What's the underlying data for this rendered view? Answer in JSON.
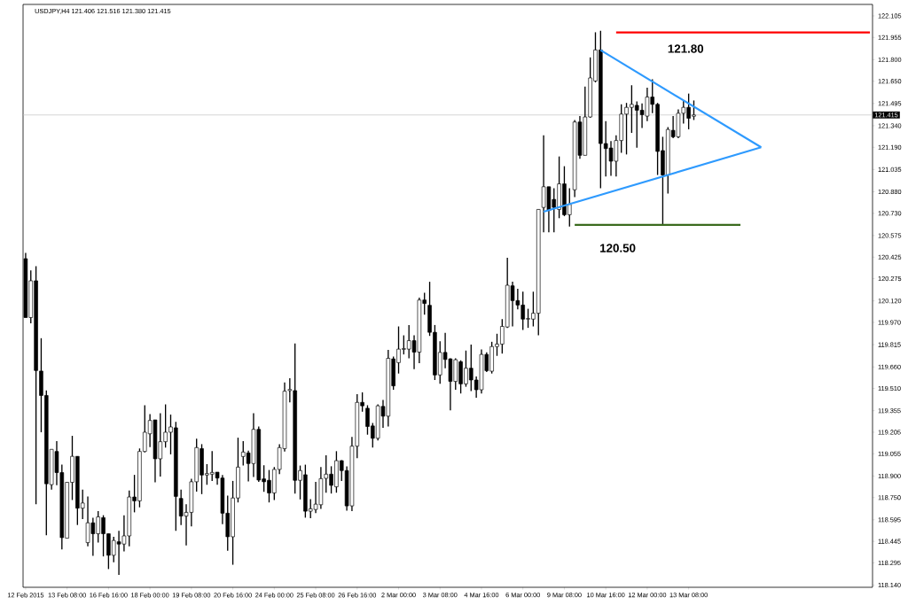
{
  "chart_data": {
    "type": "candlestick",
    "title": "USDJPY,H4 121.406 121.516 121.380 121.415",
    "categories": [
      "12 Feb 2015",
      null,
      null,
      null,
      null,
      null,
      null,
      null,
      "13 Feb 08:00",
      null,
      null,
      null,
      null,
      null,
      null,
      null,
      "16 Feb 16:00",
      null,
      null,
      null,
      null,
      null,
      null,
      null,
      "18 Feb 00:00",
      null,
      null,
      null,
      null,
      null,
      null,
      null,
      "19 Feb 08:00",
      null,
      null,
      null,
      null,
      null,
      null,
      null,
      "20 Feb 16:00",
      null,
      null,
      null,
      null,
      null,
      null,
      null,
      "24 Feb 00:00",
      null,
      null,
      null,
      null,
      null,
      null,
      null,
      "25 Feb 08:00",
      null,
      null,
      null,
      null,
      null,
      null,
      null,
      "26 Feb 16:00",
      null,
      null,
      null,
      null,
      null,
      null,
      null,
      "2 Mar 00:00",
      null,
      null,
      null,
      null,
      null,
      null,
      null,
      "3 Mar 08:00",
      null,
      null,
      null,
      null,
      null,
      null,
      null,
      "4 Mar 16:00",
      null,
      null,
      null,
      null,
      null,
      null,
      null,
      "6 Mar 00:00",
      null,
      null,
      null,
      null,
      null,
      null,
      null,
      "9 Mar 08:00",
      null,
      null,
      null,
      null,
      null,
      null,
      null,
      "10 Mar 16:00",
      null,
      null,
      null,
      null,
      null,
      null,
      null,
      "12 Mar 00:00",
      null,
      null,
      null,
      null,
      null,
      null,
      null,
      "13 Mar 08:00",
      null,
      null,
      null,
      null,
      null,
      null,
      null,
      null,
      null,
      null,
      null,
      null,
      null,
      null,
      null,
      null,
      null,
      null,
      null,
      null,
      null,
      null,
      null,
      null,
      null,
      null,
      null,
      null,
      null,
      null,
      null,
      null,
      null,
      null,
      null
    ],
    "ohlc": [
      [
        120.414,
        120.455,
        120.004,
        120.004
      ],
      [
        120.004,
        120.332,
        119.963,
        120.26
      ],
      [
        120.26,
        120.362,
        118.703,
        119.635
      ],
      [
        119.631,
        119.86,
        119.205,
        119.461
      ],
      [
        119.461,
        119.496,
        118.488,
        118.846
      ],
      [
        118.84,
        119.086,
        118.805,
        119.086
      ],
      [
        119.071,
        119.143,
        118.836,
        118.924
      ],
      [
        118.924,
        118.979,
        118.389,
        118.471
      ],
      [
        118.467,
        118.856,
        118.467,
        118.856
      ],
      [
        118.856,
        119.18,
        118.733,
        119.037
      ],
      [
        119.037,
        119.037,
        118.559,
        118.676
      ],
      [
        118.676,
        118.805,
        118.6,
        118.712
      ],
      [
        118.436,
        118.758,
        118.41,
        118.574
      ],
      [
        118.574,
        118.61,
        118.344,
        118.498
      ],
      [
        118.498,
        118.656,
        118.436,
        118.615
      ],
      [
        118.61,
        118.627,
        118.34,
        118.498
      ],
      [
        118.498,
        118.498,
        118.252,
        118.348
      ],
      [
        118.348,
        118.477,
        118.299,
        118.451
      ],
      [
        118.442,
        118.518,
        118.211,
        118.426
      ],
      [
        118.426,
        118.627,
        118.375,
        118.483
      ],
      [
        118.483,
        118.799,
        118.41,
        118.754
      ],
      [
        118.754,
        118.908,
        118.647,
        118.727
      ],
      [
        118.727,
        119.092,
        118.682,
        119.071
      ],
      [
        119.071,
        119.393,
        119.065,
        119.205
      ],
      [
        119.194,
        119.332,
        119.102,
        119.287
      ],
      [
        119.291,
        119.291,
        118.856,
        119.02
      ],
      [
        119.02,
        119.338,
        118.897,
        119.139
      ],
      [
        119.139,
        119.399,
        119.098,
        119.205
      ],
      [
        119.205,
        119.328,
        119.051,
        119.242
      ],
      [
        119.236,
        119.277,
        118.518,
        118.758
      ],
      [
        118.744,
        118.805,
        118.559,
        118.621
      ],
      [
        118.621,
        118.703,
        118.416,
        118.647
      ],
      [
        118.647,
        118.881,
        118.549,
        118.86
      ],
      [
        118.86,
        119.16,
        118.791,
        119.098
      ],
      [
        119.091,
        119.122,
        118.774,
        118.907
      ],
      [
        118.907,
        118.983,
        118.839,
        118.917
      ],
      [
        118.913,
        119.073,
        118.866,
        118.925
      ],
      [
        118.927,
        118.927,
        118.839,
        118.886
      ],
      [
        118.886,
        118.907,
        118.565,
        118.641
      ],
      [
        118.641,
        118.764,
        118.38,
        118.477
      ],
      [
        118.477,
        118.866,
        118.282,
        118.747
      ],
      [
        118.747,
        119.167,
        118.716,
        118.962
      ],
      [
        119.036,
        119.143,
        118.973,
        119.067
      ],
      [
        119.061,
        119.077,
        118.862,
        118.987
      ],
      [
        118.987,
        119.337,
        118.893,
        119.225
      ],
      [
        119.225,
        119.245,
        118.86,
        118.872
      ],
      [
        118.88,
        118.975,
        118.79,
        118.86
      ],
      [
        118.87,
        118.942,
        118.716,
        118.782
      ],
      [
        118.782,
        118.962,
        118.733,
        118.946
      ],
      [
        118.946,
        119.122,
        118.913,
        119.098
      ],
      [
        119.091,
        119.552,
        119.071,
        119.491
      ],
      [
        119.495,
        119.581,
        119.413,
        119.503
      ],
      [
        119.495,
        119.823,
        118.778,
        118.87
      ],
      [
        118.87,
        118.973,
        118.737,
        118.938
      ],
      [
        118.909,
        118.979,
        118.61,
        118.655
      ],
      [
        118.655,
        118.739,
        118.606,
        118.672
      ],
      [
        118.667,
        118.86,
        118.641,
        118.704
      ],
      [
        118.7,
        118.962,
        118.671,
        118.882
      ],
      [
        118.884,
        119.044,
        118.784,
        118.913
      ],
      [
        118.913,
        118.968,
        118.778,
        118.835
      ],
      [
        118.825,
        119.073,
        118.784,
        119.007
      ],
      [
        119.007,
        119.011,
        118.866,
        118.938
      ],
      [
        118.938,
        118.968,
        118.659,
        118.692
      ],
      [
        118.692,
        119.173,
        118.655,
        119.108
      ],
      [
        119.108,
        119.47,
        119.024,
        119.413
      ],
      [
        119.413,
        119.483,
        119.348,
        119.389
      ],
      [
        119.372,
        119.393,
        119.188,
        119.245
      ],
      [
        119.249,
        119.27,
        119.098,
        119.163
      ],
      [
        119.163,
        119.399,
        119.147,
        119.389
      ],
      [
        119.385,
        119.43,
        119.235,
        119.317
      ],
      [
        119.317,
        119.778,
        119.245,
        119.72
      ],
      [
        119.716,
        119.733,
        119.501,
        119.528
      ],
      [
        119.69,
        119.942,
        119.614,
        119.784
      ],
      [
        119.782,
        119.88,
        119.747,
        119.788
      ],
      [
        119.784,
        119.952,
        119.72,
        119.843
      ],
      [
        119.843,
        119.88,
        119.645,
        119.763
      ],
      [
        119.763,
        120.143,
        119.686,
        120.126
      ],
      [
        120.126,
        120.177,
        120.024,
        120.102
      ],
      [
        120.089,
        120.253,
        119.876,
        119.901
      ],
      [
        119.901,
        119.952,
        119.569,
        119.604
      ],
      [
        119.604,
        119.839,
        119.542,
        119.761
      ],
      [
        119.761,
        119.897,
        119.651,
        119.712
      ],
      [
        119.716,
        119.72,
        119.358,
        119.559
      ],
      [
        119.559,
        119.72,
        119.501,
        119.71
      ],
      [
        119.696,
        119.706,
        119.475,
        119.542
      ],
      [
        119.542,
        119.774,
        119.522,
        119.651
      ],
      [
        119.651,
        119.815,
        119.491,
        119.569
      ],
      [
        119.569,
        119.593,
        119.446,
        119.501
      ],
      [
        119.501,
        119.782,
        119.475,
        119.747
      ],
      [
        119.747,
        119.761,
        119.624,
        119.634
      ],
      [
        119.63,
        119.835,
        119.614,
        119.802
      ],
      [
        119.802,
        119.891,
        119.737,
        119.819
      ],
      [
        119.819,
        119.993,
        119.753,
        119.942
      ],
      [
        119.938,
        120.42,
        119.932,
        120.229
      ],
      [
        120.225,
        120.253,
        119.942,
        120.122
      ],
      [
        120.122,
        120.204,
        120.061,
        120.091
      ],
      [
        120.091,
        120.184,
        119.917,
        119.993
      ],
      [
        119.993,
        120.065,
        119.932,
        119.997
      ],
      [
        119.993,
        120.184,
        119.942,
        120.034
      ],
      [
        120.034,
        120.757,
        119.88,
        120.757
      ],
      [
        120.771,
        121.273,
        120.597,
        120.915
      ],
      [
        120.915,
        120.915,
        120.597,
        120.751
      ],
      [
        120.827,
        120.905,
        120.597,
        120.771
      ],
      [
        120.757,
        121.126,
        120.696,
        120.935
      ],
      [
        120.935,
        121.058,
        120.71,
        120.72
      ],
      [
        120.72,
        120.905,
        120.638,
        120.792
      ],
      [
        120.894,
        121.38,
        120.843,
        121.366
      ],
      [
        121.366,
        121.407,
        121.11,
        121.134
      ],
      [
        121.134,
        121.612,
        121.134,
        121.401
      ],
      [
        121.401,
        121.816,
        121.396,
        121.673
      ],
      [
        121.652,
        121.991,
        121.642,
        121.868
      ],
      [
        121.868,
        122.001,
        120.905,
        121.216
      ],
      [
        121.216,
        121.372,
        120.987,
        121.181
      ],
      [
        121.185,
        121.233,
        120.991,
        121.093
      ],
      [
        121.093,
        121.273,
        120.987,
        121.237
      ],
      [
        121.237,
        121.489,
        121.151,
        121.421
      ],
      [
        121.421,
        121.499,
        121.14,
        121.468
      ],
      [
        121.468,
        121.622,
        121.29,
        121.489
      ],
      [
        121.482,
        121.509,
        121.187,
        121.448
      ],
      [
        121.448,
        121.495,
        121.325,
        121.417
      ],
      [
        121.407,
        121.605,
        121.372,
        121.54
      ],
      [
        121.54,
        121.663,
        121.427,
        121.489
      ],
      [
        121.489,
        121.499,
        120.997,
        121.161
      ],
      [
        121.167,
        121.263,
        120.649,
        120.997
      ],
      [
        120.997,
        121.331,
        120.868,
        121.314
      ],
      [
        121.308,
        121.407,
        121.253,
        121.263
      ],
      [
        121.263,
        121.454,
        121.253,
        121.427
      ],
      [
        121.427,
        121.519,
        121.355,
        121.468
      ],
      [
        121.468,
        121.564,
        121.315,
        121.392
      ],
      [
        121.406,
        121.516,
        121.38,
        121.415
      ],
      null,
      null,
      null,
      null,
      null,
      null,
      null,
      null,
      null,
      null,
      null,
      null,
      null,
      null,
      null,
      null,
      null,
      null,
      null,
      null,
      null,
      null,
      null,
      null,
      null,
      null,
      null,
      null,
      null,
      null,
      null,
      null,
      null,
      null
    ],
    "series": [
      {
        "type": "line",
        "color": "#2e9afe",
        "values": [
          null,
          null,
          null,
          null,
          null,
          null,
          null,
          null,
          null,
          null,
          null,
          null,
          null,
          null,
          null,
          null,
          null,
          null,
          null,
          null,
          null,
          null,
          null,
          null,
          null,
          null,
          null,
          null,
          null,
          null,
          null,
          null,
          null,
          null,
          null,
          null,
          null,
          null,
          null,
          null,
          null,
          null,
          null,
          null,
          null,
          null,
          null,
          null,
          null,
          null,
          null,
          null,
          null,
          null,
          null,
          null,
          null,
          null,
          null,
          null,
          null,
          null,
          null,
          null,
          null,
          null,
          null,
          null,
          null,
          null,
          null,
          null,
          null,
          null,
          null,
          null,
          null,
          null,
          null,
          null,
          null,
          null,
          null,
          null,
          null,
          null,
          null,
          null,
          null,
          null,
          null,
          null,
          null,
          null,
          null,
          null,
          null,
          null,
          null,
          null,
          null,
          null,
          null,
          null,
          null,
          null,
          null,
          null,
          null,
          null,
          null,
          121.866,
          null,
          null,
          null,
          null,
          null,
          null,
          null,
          null,
          null,
          null,
          null,
          null,
          null,
          null,
          null,
          null,
          null,
          null,
          null,
          null,
          null,
          null,
          null,
          null,
          null,
          null,
          null,
          null,
          null,
          null,
          121.19,
          null,
          null,
          null,
          null,
          null,
          null,
          null,
          null,
          null,
          null,
          null,
          null,
          null,
          null,
          null,
          null,
          null,
          null,
          null,
          null,
          null
        ]
      },
      {
        "type": "line",
        "color": "#2e9afe",
        "values": [
          null,
          null,
          null,
          null,
          null,
          null,
          null,
          null,
          null,
          null,
          null,
          null,
          null,
          null,
          null,
          null,
          null,
          null,
          null,
          null,
          null,
          null,
          null,
          null,
          null,
          null,
          null,
          null,
          null,
          null,
          null,
          null,
          null,
          null,
          null,
          null,
          null,
          null,
          null,
          null,
          null,
          null,
          null,
          null,
          null,
          null,
          null,
          null,
          null,
          null,
          null,
          null,
          null,
          null,
          null,
          null,
          null,
          null,
          null,
          null,
          null,
          null,
          null,
          null,
          null,
          null,
          null,
          null,
          null,
          null,
          null,
          null,
          null,
          null,
          null,
          null,
          null,
          null,
          null,
          null,
          null,
          null,
          null,
          null,
          null,
          null,
          null,
          null,
          null,
          null,
          null,
          null,
          null,
          null,
          null,
          null,
          null,
          null,
          null,
          null,
          120.741,
          null,
          null,
          null,
          null,
          null,
          null,
          null,
          null,
          null,
          null,
          null,
          null,
          null,
          null,
          null,
          null,
          null,
          null,
          null,
          null,
          null,
          null,
          null,
          null,
          null,
          null,
          null,
          null,
          null,
          null,
          null,
          null,
          null,
          null,
          null,
          null,
          null,
          null,
          null,
          null,
          null,
          121.19,
          null,
          null,
          null,
          null,
          null,
          null,
          null,
          null,
          null,
          null,
          null,
          null,
          null,
          null,
          null,
          null,
          null,
          null,
          null,
          null,
          null
        ]
      },
      {
        "type": "line",
        "color": "#ff0000",
        "values": [
          null,
          null,
          null,
          null,
          null,
          null,
          null,
          null,
          null,
          null,
          null,
          null,
          null,
          null,
          null,
          null,
          null,
          null,
          null,
          null,
          null,
          null,
          null,
          null,
          null,
          null,
          null,
          null,
          null,
          null,
          null,
          null,
          null,
          null,
          null,
          null,
          null,
          null,
          null,
          null,
          null,
          null,
          null,
          null,
          null,
          null,
          null,
          null,
          null,
          null,
          null,
          null,
          null,
          null,
          null,
          null,
          null,
          null,
          null,
          null,
          null,
          null,
          null,
          null,
          null,
          null,
          null,
          null,
          null,
          null,
          null,
          null,
          null,
          null,
          null,
          null,
          null,
          null,
          null,
          null,
          null,
          null,
          null,
          null,
          null,
          null,
          null,
          null,
          null,
          null,
          null,
          null,
          null,
          null,
          null,
          null,
          null,
          null,
          null,
          null,
          null,
          null,
          null,
          null,
          null,
          null,
          null,
          null,
          null,
          null,
          null,
          null,
          null,
          null,
          121.99,
          null,
          null,
          null,
          null,
          null,
          null,
          null,
          null,
          null,
          null,
          null,
          null,
          null,
          null,
          null,
          null,
          null,
          null,
          null,
          null,
          null,
          null,
          null,
          null,
          null,
          null,
          null,
          null,
          null,
          null,
          null,
          null,
          null,
          null,
          null,
          null,
          null,
          null,
          null,
          null,
          null,
          null,
          null,
          null,
          null,
          null,
          null,
          null,
          121.99
        ]
      },
      {
        "type": "line",
        "color": "#3a6b1e",
        "values": [
          null,
          null,
          null,
          null,
          null,
          null,
          null,
          null,
          null,
          null,
          null,
          null,
          null,
          null,
          null,
          null,
          null,
          null,
          null,
          null,
          null,
          null,
          null,
          null,
          null,
          null,
          null,
          null,
          null,
          null,
          null,
          null,
          null,
          null,
          null,
          null,
          null,
          null,
          null,
          null,
          null,
          null,
          null,
          null,
          null,
          null,
          null,
          null,
          null,
          null,
          null,
          null,
          null,
          null,
          null,
          null,
          null,
          null,
          null,
          null,
          null,
          null,
          null,
          null,
          null,
          null,
          null,
          null,
          null,
          null,
          null,
          null,
          null,
          null,
          null,
          null,
          null,
          null,
          null,
          null,
          null,
          null,
          null,
          null,
          null,
          null,
          null,
          null,
          null,
          null,
          null,
          null,
          null,
          null,
          null,
          null,
          null,
          null,
          null,
          null,
          null,
          null,
          null,
          null,
          null,
          null,
          120.649,
          null,
          null,
          null,
          null,
          null,
          null,
          null,
          null,
          null,
          null,
          null,
          null,
          null,
          null,
          null,
          null,
          null,
          null,
          null,
          null,
          null,
          null,
          null,
          null,
          null,
          null,
          null,
          null,
          null,
          null,
          null,
          120.649,
          null,
          null,
          null,
          null,
          null,
          null,
          null,
          null,
          null,
          null,
          null,
          null,
          null,
          null,
          null,
          null,
          null,
          null,
          null,
          null,
          null,
          null,
          null,
          null,
          null
        ]
      }
    ],
    "ref_lines": [
      {
        "axis": "y",
        "value": 121.415,
        "label": "121.415",
        "color": "#c0c0c0"
      }
    ],
    "annotations": [
      "121.80",
      "120.50"
    ],
    "ylim": [
      118.125,
      122.185
    ],
    "yticks": [
      {
        "value": 118.14,
        "label": "118.140"
      },
      {
        "value": 118.295,
        "label": "118.295"
      },
      {
        "value": 118.445,
        "label": "118.445"
      },
      {
        "value": 118.595,
        "label": "118.595"
      },
      {
        "value": 118.75,
        "label": "118.750"
      },
      {
        "value": 118.9,
        "label": "118.900"
      },
      {
        "value": 119.055,
        "label": "119.055"
      },
      {
        "value": 119.205,
        "label": "119.205"
      },
      {
        "value": 119.355,
        "label": "119.355"
      },
      {
        "value": 119.51,
        "label": "119.510"
      },
      {
        "value": 119.66,
        "label": "119.660"
      },
      {
        "value": 119.815,
        "label": "119.815"
      },
      {
        "value": 119.97,
        "label": "119.970"
      },
      {
        "value": 120.12,
        "label": "120.120"
      },
      {
        "value": 120.275,
        "label": "120.275"
      },
      {
        "value": 120.425,
        "label": "120.425"
      },
      {
        "value": 120.575,
        "label": "120.575"
      },
      {
        "value": 120.73,
        "label": "120.730"
      },
      {
        "value": 120.88,
        "label": "120.880"
      },
      {
        "value": 121.035,
        "label": "121.035"
      },
      {
        "value": 121.19,
        "label": "121.190"
      },
      {
        "value": 121.34,
        "label": "121.340"
      },
      {
        "value": 121.495,
        "label": "121.495"
      },
      {
        "value": 121.65,
        "label": "121.650"
      },
      {
        "value": 121.8,
        "label": "121.800"
      },
      {
        "value": 121.955,
        "label": "121.955"
      },
      {
        "value": 122.105,
        "label": "122.105"
      }
    ]
  }
}
